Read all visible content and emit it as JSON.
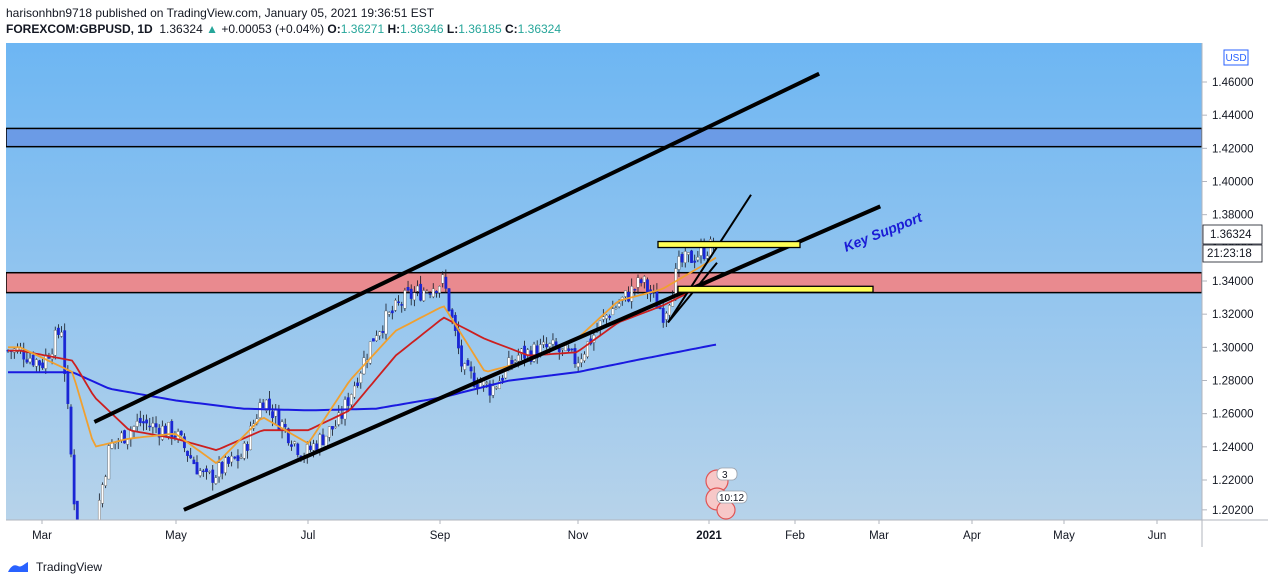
{
  "header": {
    "publisher_line": "harisonhbn9718 published on TradingView.com, January 05, 2021 19:36:51 EST",
    "symbol": "FOREXCOM:GBPUSD, 1D",
    "last": "1.36324",
    "change": "+0.00053 (+0.04%)",
    "o_label": "O:",
    "o_value": "1.36271",
    "h_label": "H:",
    "h_value": "1.36346",
    "l_label": "L:",
    "l_value": "1.36185",
    "c_label": "C:",
    "c_value": "1.36324"
  },
  "price_axis": {
    "currency": "USD",
    "ticks": [
      "1.46000",
      "1.44000",
      "1.42000",
      "1.40000",
      "1.38000",
      "1.36000",
      "1.34000",
      "1.32000",
      "1.30000",
      "1.28000",
      "1.26000",
      "1.24000",
      "1.22000",
      "1.20200"
    ],
    "last_price_label": "1.36324",
    "countdown_label": "21:23:18"
  },
  "time_axis": {
    "labels": [
      "Mar",
      "May",
      "Jul",
      "Sep",
      "Nov",
      "2021",
      "Feb",
      "Mar",
      "Apr",
      "May",
      "Jun"
    ]
  },
  "annotations": {
    "key_support": "Key Support",
    "event_badge_1": "3",
    "event_badge_2": "10:12"
  },
  "footer": {
    "brand": "TradingView"
  },
  "colors": {
    "background_top": "#6db6f3",
    "background_bottom": "#b7d3ea",
    "zone_blue": "#6b9be6",
    "zone_red": "#e98a8f",
    "zone_yellow": "#ffff55",
    "ema_blue": "#1a1ae0",
    "ema_red": "#cc1f1f",
    "ema_orange": "#f0a030",
    "candle_up": "#ffffff",
    "candle_down": "#1a26d4",
    "text_blue": "#1a1ad6",
    "change_green": "#26a69a"
  },
  "chart_data": {
    "type": "candlestick",
    "symbol": "FOREXCOM:GBPUSD",
    "timeframe": "1D",
    "price_range": [
      1.2,
      1.485
    ],
    "series": [
      {
        "x": [
          "Feb 20",
          "Mar 01",
          "Mar 10",
          "Mar 19",
          "Apr 01",
          "Apr 15",
          "May 01",
          "May 15",
          "Jun 01",
          "Jun 10",
          "Jun 29",
          "Jul 15",
          "Aug 01",
          "Aug 15",
          "Sep 01",
          "Sep 10",
          "Sep 23",
          "Oct 05",
          "Oct 20",
          "Nov 01",
          "Nov 15",
          "Dec 01",
          "Dec 11",
          "Dec 18",
          "Jan 05"
        ],
        "values": [
          1.298,
          1.29,
          1.312,
          1.15,
          1.24,
          1.255,
          1.248,
          1.22,
          1.235,
          1.27,
          1.235,
          1.255,
          1.31,
          1.33,
          1.34,
          1.285,
          1.275,
          1.295,
          1.3,
          1.292,
          1.32,
          1.34,
          1.32,
          1.35,
          1.3632
        ]
      },
      {
        "x": [
          "Feb 20",
          "Mar 15",
          "Apr 01",
          "May 01",
          "Jun 01",
          "Jul 01",
          "Aug 01",
          "Sep 01",
          "Oct 01",
          "Nov 01",
          "Dec 01",
          "Jan 05"
        ],
        "values": [
          1.285,
          1.285,
          1.275,
          1.268,
          1.263,
          1.262,
          1.263,
          1.27,
          1.28,
          1.285,
          1.293,
          1.302
        ]
      },
      {
        "x": [
          "Feb 20",
          "Mar 15",
          "Mar 25",
          "Apr 10",
          "May 01",
          "May 20",
          "Jun 10",
          "Jul 01",
          "Jul 20",
          "Aug 10",
          "Sep 01",
          "Sep 20",
          "Oct 10",
          "Nov 01",
          "Nov 20",
          "Dec 10",
          "Jan 05"
        ],
        "values": [
          1.298,
          1.292,
          1.27,
          1.25,
          1.245,
          1.238,
          1.25,
          1.25,
          1.262,
          1.295,
          1.318,
          1.305,
          1.295,
          1.297,
          1.315,
          1.325,
          1.342
        ]
      },
      {
        "x": [
          "Feb 20",
          "Mar 15",
          "Mar 25",
          "Apr 10",
          "May 01",
          "May 20",
          "Jun 10",
          "Jul 01",
          "Jul 20",
          "Aug 10",
          "Sep 01",
          "Sep 20",
          "Oct 10",
          "Nov 01",
          "Nov 20",
          "Dec 10",
          "Jan 05"
        ],
        "values": [
          1.3,
          1.285,
          1.24,
          1.245,
          1.248,
          1.23,
          1.258,
          1.242,
          1.28,
          1.31,
          1.325,
          1.285,
          1.292,
          1.305,
          1.328,
          1.335,
          1.355
        ]
      }
    ],
    "zones": [
      {
        "name": "blue resistance",
        "from": 1.421,
        "to": 1.432
      },
      {
        "name": "red support",
        "from": 1.333,
        "to": 1.345
      },
      {
        "name": "yellow upper",
        "price": 1.362
      },
      {
        "name": "yellow lower",
        "price": 1.335
      }
    ],
    "channel": {
      "upper": [
        [
          "Mar 25",
          1.255
        ],
        [
          "Feb 20 2021",
          1.465
        ]
      ],
      "lower": [
        [
          "May 05",
          1.202
        ],
        [
          "Mar 20 2021",
          1.385
        ]
      ]
    }
  }
}
